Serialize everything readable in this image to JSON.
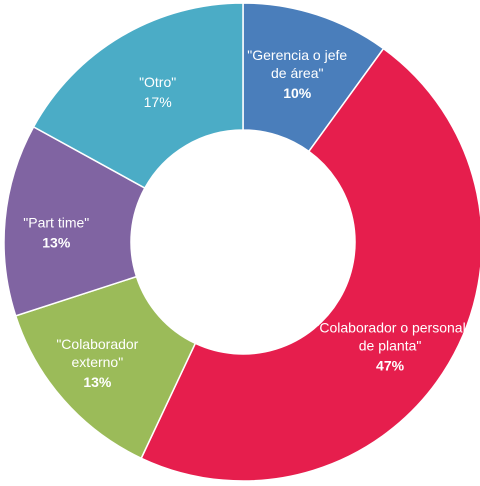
{
  "chart_data": {
    "type": "pie",
    "title": "",
    "legend": "none",
    "slices": [
      {
        "label_lines": [
          "\"Gerencia o jefe",
          "de área\""
        ],
        "value": 10,
        "pct_text": "10%",
        "color": "#4a7ebb",
        "pct_bold": true
      },
      {
        "label_lines": [
          "\"Colaborador o personal",
          "de planta\""
        ],
        "value": 47,
        "pct_text": "47%",
        "color": "#e61e4d",
        "pct_bold": true
      },
      {
        "label_lines": [
          "\"Colaborador",
          "externo\""
        ],
        "value": 13,
        "pct_text": "13%",
        "color": "#9bbb59",
        "pct_bold": true
      },
      {
        "label_lines": [
          "\"Part time\""
        ],
        "value": 13,
        "pct_text": "13%",
        "color": "#8064a2",
        "pct_bold": true
      },
      {
        "label_lines": [
          "\"Otro\""
        ],
        "value": 17,
        "pct_text": "17%",
        "color": "#4bacc6",
        "pct_bold": false
      }
    ]
  }
}
